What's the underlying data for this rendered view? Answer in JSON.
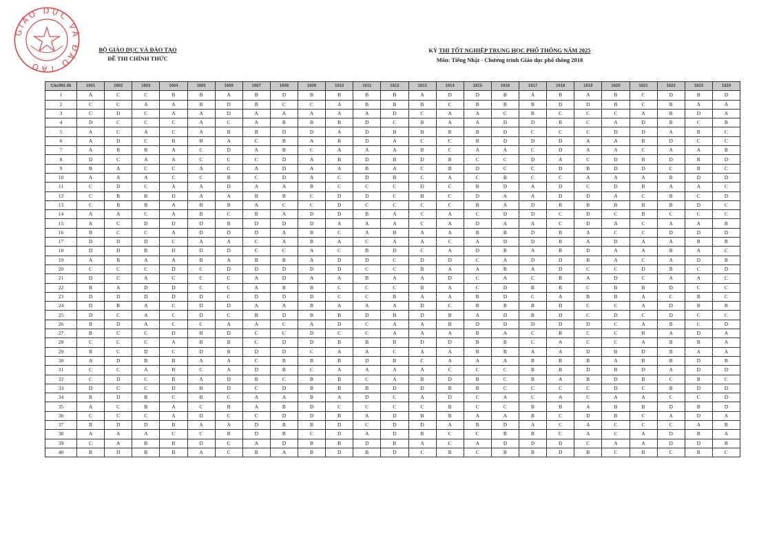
{
  "header_left": {
    "line1": "BỘ GIÁO DỤC VÀ ĐÀO TẠO",
    "line2": "ĐỀ THI CHÍNH THỨC"
  },
  "header_right": {
    "line1_prefix": "KỲ ",
    "line1": "THI TỐT NGHIỆP TRUNG HỌC PHỔ THÔNG NĂM 2025",
    "line2": "Môn: Tiếng Nhật - Chương trình Giáo dục phổ thông 2018"
  },
  "seal": {
    "text": "GIÁO DỤC VÀ ĐÀO TẠO",
    "color": "#e0262b"
  },
  "table": {
    "corner_header": "Câu/Mã đề",
    "codes": [
      "1601",
      "1602",
      "1603",
      "1604",
      "1605",
      "1606",
      "1607",
      "1608",
      "1609",
      "1610",
      "1611",
      "1612",
      "1613",
      "1614",
      "1615",
      "1616",
      "1617",
      "1618",
      "1619",
      "1620",
      "1621",
      "1622",
      "1623",
      "1624"
    ],
    "rows": [
      {
        "q": "1",
        "answers": "ACCBBABDBBBBADDBABABCDBD"
      },
      {
        "q": "2",
        "answers": "CCAABDBCCABBBCBBBDDBCBAA"
      },
      {
        "q": "3",
        "answers": "CDCAADAAAAADCAACBCCCABDA"
      },
      {
        "q": "4",
        "answers": "DCCCACABBBDCBAADDBCADBCB"
      },
      {
        "q": "5",
        "answers": "ACACABBDDADBBBBDCCCDDABC"
      },
      {
        "q": "6",
        "answers": "ADCBBACBABDACCBDDDAABDCC"
      },
      {
        "q": "7",
        "answers": "ABBACDABCAAABCAACDAACAAB"
      },
      {
        "q": "8",
        "answers": "DCAACCCDABDBDBCCDACDBDBD"
      },
      {
        "q": "9",
        "answers": "BACCACADAABACBDCCDBDDCBC"
      },
      {
        "q": "10",
        "answers": "AAACCBCDACDBCACBCCAAABDD"
      },
      {
        "q": "11",
        "answers": "CDCAADAABCCCDCBDADCDBAAC"
      },
      {
        "q": "12",
        "answers": "CBBDAABBCDDCBCDAADDACBCD"
      },
      {
        "q": "13",
        "answers": "CBBABBACCDCCCCBADBBBBBDC"
      },
      {
        "q": "14",
        "answers": "AACABCBADDBACACDDCDCBCCC"
      },
      {
        "q": "15",
        "answers": "ACDDDBDDDAAACADAACDACAAB"
      },
      {
        "q": "16",
        "answers": "BCCADDDABCABAABBDBACCDDD"
      },
      {
        "q": "17",
        "answers": "DDDCAACABACAACADDBADAABB"
      },
      {
        "q": "18",
        "answers": "DDBDDDCCACBDCADBABDAABAC"
      },
      {
        "q": "19",
        "answers": "ABAABABBADDCDDCADDBACADB"
      },
      {
        "q": "20",
        "answers": "CCCDCDDDDDCCBAABADCCDBCD"
      },
      {
        "q": "21",
        "answers": "DCACCCADAABAADCACBADCAAC"
      },
      {
        "q": "22",
        "answers": "BADDCCABBCCCBACDBBCBBDCC"
      },
      {
        "q": "23",
        "answers": "DDDDDCDDDCCBAABDCABBACBC"
      },
      {
        "q": "24",
        "answers": "DBACDDAABAAADCBBBDCCADBB"
      },
      {
        "q": "25",
        "answers": "DCACDCBDBBDBDBADBDCDCDCC"
      },
      {
        "q": "26",
        "answers": "BDACCAACADCAABDDDDDCABCD"
      },
      {
        "q": "27",
        "answers": "BCCDBDCCDCCAAABACBCCBADA"
      },
      {
        "q": "28",
        "answers": "CCCABBCDDBBBDDBBCACCABBA"
      },
      {
        "q": "29",
        "answers": "BCDCDBDDCAACAABBAADBDBAA"
      },
      {
        "q": "30",
        "answers": "ADBBAACBBBDBCAAABBBABBDB"
      },
      {
        "q": "31",
        "answers": "CCABCADBCAAAACCCBBDBDADD"
      },
      {
        "q": "32",
        "answers": "CDCBADBCBBCABDBCBABDBCBC"
      },
      {
        "q": "33",
        "answers": "DCCDBDCDBBBDDBBCCCCDCBDD"
      },
      {
        "q": "34",
        "answers": "BDBCBCAABADCADCACACAACCD"
      },
      {
        "q": "35",
        "answers": "ACBACBABDCCCCBCCBBABBDBD"
      },
      {
        "q": "36",
        "answers": "CCCADCCDDBADBBAABCDBCADA"
      },
      {
        "q": "37",
        "answers": "BDDBAADBBDCDDABDACACCCAB"
      },
      {
        "q": "38",
        "answers": "AAACCBDBCDADBCCBBCACADBA"
      },
      {
        "q": "39",
        "answers": "CABBDCADBBDBACADDDCAADDB"
      },
      {
        "q": "40",
        "answers": "BDBBACBABDBDCBCBBDBCBCBC"
      }
    ]
  }
}
